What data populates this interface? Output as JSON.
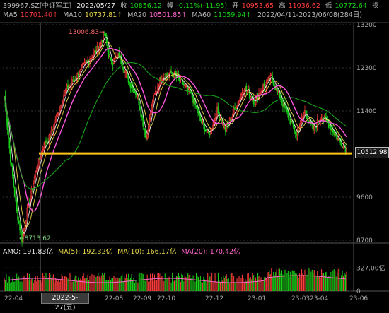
{
  "header": {
    "code": "399967.SZ[中证军工]",
    "date": "2022/05/27",
    "close_label": "收",
    "close": "10856.12",
    "change_label": "幅",
    "change": "-0.11%(-11.95)",
    "open_label": "开",
    "open": "10953.65",
    "high_label": "高",
    "high": "11036.62",
    "low_label": "低",
    "low": "10772.64",
    "more": "换"
  },
  "ma_legend": {
    "ma5_label": "MA5",
    "ma5": "10701.40↑",
    "ma10_label": "MA10",
    "ma10": "10737.81↑",
    "ma20_label": "MA20",
    "ma20": "10501.85↑",
    "ma60_label": "MA60",
    "ma60": "11059.94↑",
    "range": "2022/04/11-2023/06/08(284日)"
  },
  "annotations": {
    "high_marker": "13006.83→",
    "low_marker": "←8713.62",
    "price_line_label": "10512.98"
  },
  "volume_legend": {
    "amo": "AMO: 191.83亿",
    "ma5": "MA(5): 192.32亿",
    "ma10": "MA(10): 166.17亿",
    "ma20": "MA(20): 170.42亿"
  },
  "cursor_date": "2022-5-27(五)",
  "colors": {
    "up": "#ff3b3b",
    "down": "#18d018",
    "ma5": "#e8e8e8",
    "ma10": "#e8d84a",
    "ma20": "#ff55dd",
    "ma60": "#18b018",
    "price_line": "#ffc61a"
  },
  "chart_data": {
    "type": "candlestick",
    "x_ticks": [
      "22-04",
      "22-08",
      "22-09",
      "22-10",
      "22-12",
      "23-01",
      "23-03",
      "23-04",
      "23-06"
    ],
    "y_ticks": [
      "13200",
      "12300",
      "11400",
      "10512.98",
      "9600",
      "8700"
    ],
    "ylim": [
      8700,
      13200
    ],
    "horizontal_line": 10512.98,
    "anchors": [
      {
        "t": 0,
        "v": 11700
      },
      {
        "t": 6,
        "v": 10400
      },
      {
        "t": 12,
        "v": 9300
      },
      {
        "t": 17,
        "v": 8714
      },
      {
        "t": 22,
        "v": 9300
      },
      {
        "t": 30,
        "v": 10100
      },
      {
        "t": 38,
        "v": 10700
      },
      {
        "t": 44,
        "v": 10856
      },
      {
        "t": 58,
        "v": 11800
      },
      {
        "t": 72,
        "v": 12200
      },
      {
        "t": 82,
        "v": 12500
      },
      {
        "t": 90,
        "v": 12700
      },
      {
        "t": 96,
        "v": 13007
      },
      {
        "t": 102,
        "v": 12400
      },
      {
        "t": 110,
        "v": 12550
      },
      {
        "t": 120,
        "v": 12000
      },
      {
        "t": 128,
        "v": 11700
      },
      {
        "t": 136,
        "v": 10800
      },
      {
        "t": 142,
        "v": 11600
      },
      {
        "t": 150,
        "v": 12100
      },
      {
        "t": 160,
        "v": 12200
      },
      {
        "t": 170,
        "v": 12000
      },
      {
        "t": 180,
        "v": 11700
      },
      {
        "t": 188,
        "v": 11200
      },
      {
        "t": 196,
        "v": 10900
      },
      {
        "t": 204,
        "v": 11400
      },
      {
        "t": 212,
        "v": 11000
      },
      {
        "t": 222,
        "v": 11500
      },
      {
        "t": 230,
        "v": 11900
      },
      {
        "t": 240,
        "v": 11600
      },
      {
        "t": 248,
        "v": 11900
      },
      {
        "t": 256,
        "v": 12100
      },
      {
        "t": 264,
        "v": 11700
      },
      {
        "t": 272,
        "v": 11300
      },
      {
        "t": 280,
        "v": 10900
      },
      {
        "t": 288,
        "v": 11400
      },
      {
        "t": 296,
        "v": 11000
      },
      {
        "t": 304,
        "v": 11300
      },
      {
        "t": 312,
        "v": 11100
      },
      {
        "t": 320,
        "v": 10800
      },
      {
        "t": 328,
        "v": 10600
      }
    ],
    "series": [
      {
        "name": "MA5",
        "values": [
          10701.4
        ]
      },
      {
        "name": "MA10",
        "values": [
          10737.81
        ]
      },
      {
        "name": "MA20",
        "values": [
          10501.85
        ]
      },
      {
        "name": "MA60",
        "values": [
          11059.94
        ]
      }
    ],
    "volume": {
      "ylim": [
        0,
        400
      ],
      "ticks": [
        "327.00亿",
        "0"
      ],
      "unit": "亿"
    }
  }
}
